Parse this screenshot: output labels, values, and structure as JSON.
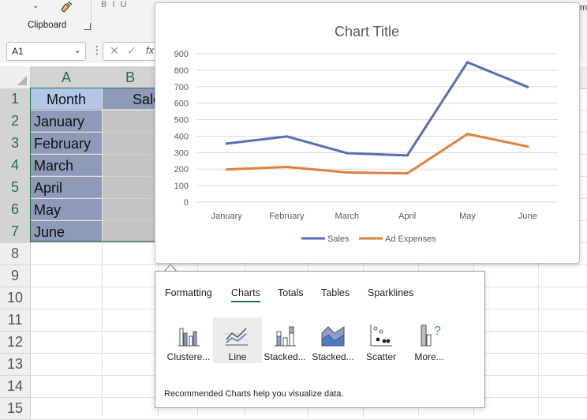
{
  "ribbon": {
    "clipboard_label": "Clipboard",
    "clip_dropdown": "⌄",
    "partial_text": "B I U",
    "right_partial": "m"
  },
  "formula_bar": {
    "name_box_value": "A1",
    "fx": "fx"
  },
  "sheet": {
    "columns": [
      "A",
      "B"
    ],
    "rows": [
      "1",
      "2",
      "3",
      "4",
      "5",
      "6",
      "7",
      "8",
      "9",
      "10",
      "11",
      "12",
      "13",
      "14",
      "15"
    ],
    "col_a": [
      "Month",
      "January",
      "February",
      "March",
      "April",
      "May",
      "June"
    ],
    "b1_partial": "Sale"
  },
  "colors": {
    "sales": "#5470b0",
    "ad_expenses": "#e0803e",
    "accent": "#217346"
  },
  "chart_data": {
    "type": "line",
    "title": "Chart Title",
    "categories": [
      "January",
      "February",
      "March",
      "April",
      "May",
      "June"
    ],
    "series": [
      {
        "name": "Sales",
        "values": [
          355,
          398,
          297,
          283,
          848,
          698
        ]
      },
      {
        "name": "Ad Expenses",
        "values": [
          198,
          213,
          180,
          174,
          413,
          337
        ]
      }
    ],
    "y_ticks": [
      "0",
      "100",
      "200",
      "300",
      "400",
      "500",
      "600",
      "700",
      "800",
      "900"
    ],
    "ylim": [
      0,
      900
    ],
    "grid": true,
    "legend": "bottom"
  },
  "quick_analysis": {
    "tabs": [
      {
        "label": "Formatting"
      },
      {
        "label": "Charts"
      },
      {
        "label": "Totals"
      },
      {
        "label": "Tables"
      },
      {
        "label": "Sparklines"
      }
    ],
    "items": [
      {
        "label": "Clustere...",
        "icon": "clustered-bar-icon"
      },
      {
        "label": "Line",
        "icon": "line-chart-icon"
      },
      {
        "label": "Stacked...",
        "icon": "stacked-bar-icon"
      },
      {
        "label": "Stacked...",
        "icon": "stacked-area-icon"
      },
      {
        "label": "Scatter",
        "icon": "scatter-icon"
      },
      {
        "label": "More...",
        "icon": "more-charts-icon"
      }
    ],
    "footer": "Recommended Charts help you visualize data."
  }
}
